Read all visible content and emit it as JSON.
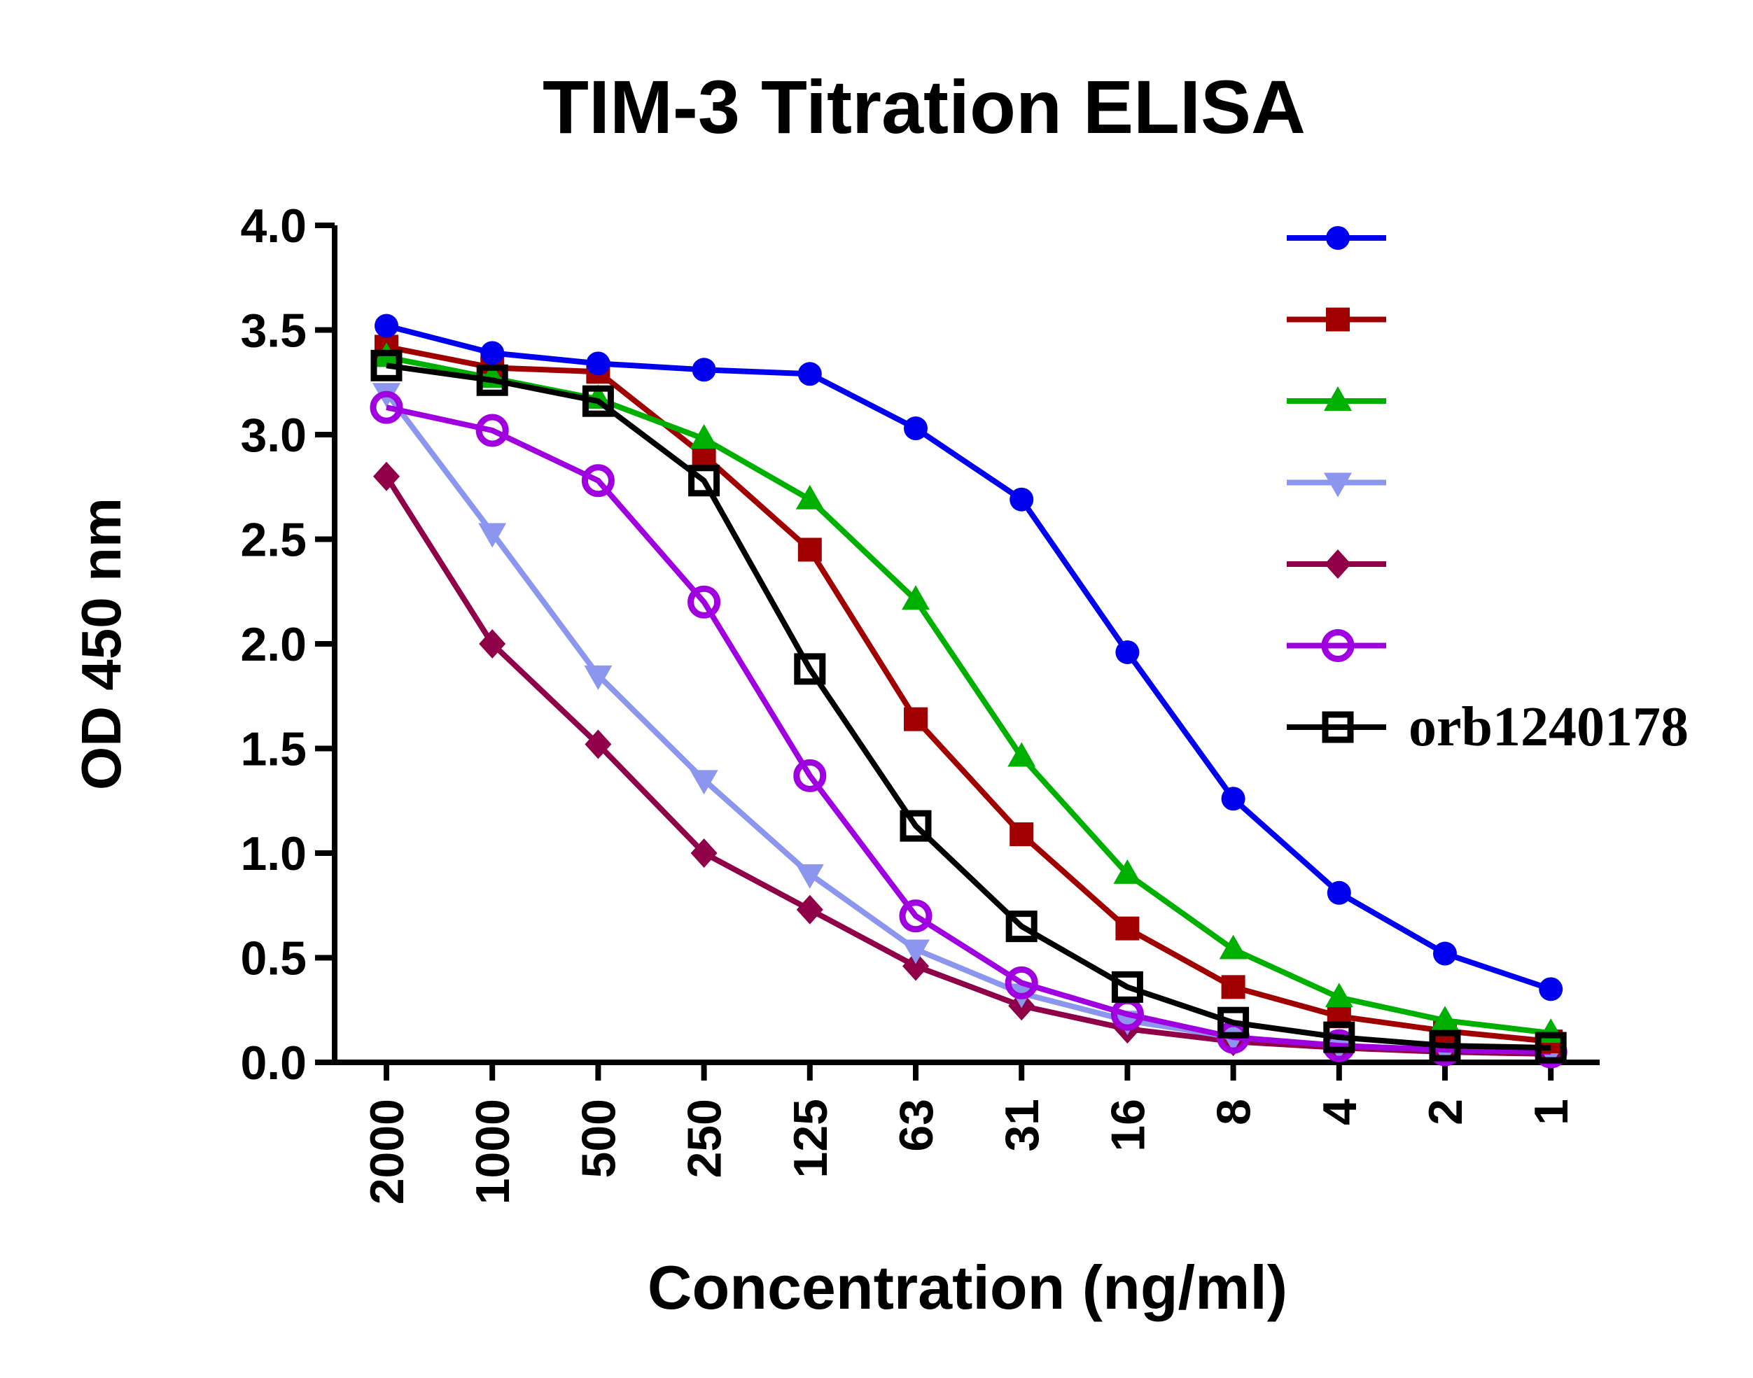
{
  "chart_data": {
    "type": "line",
    "title": "TIM-3 Titration ELISA",
    "xlabel": "Concentration (ng/ml)",
    "ylabel": "OD 450 nm",
    "categories": [
      "2000",
      "1000",
      "500",
      "250",
      "125",
      "63",
      "31",
      "16",
      "8",
      "4",
      "2",
      "1"
    ],
    "ylim": [
      0,
      4
    ],
    "yticks": [
      "0.0",
      "0.5",
      "1.0",
      "1.5",
      "2.0",
      "2.5",
      "3.0",
      "3.5",
      "4.0"
    ],
    "grid": false,
    "legend_position": "right",
    "series": [
      {
        "name": "",
        "color": "#0000ee",
        "marker": "circle",
        "values": [
          3.52,
          3.39,
          3.34,
          3.31,
          3.29,
          3.03,
          2.69,
          1.96,
          1.26,
          0.81,
          0.52,
          0.35
        ]
      },
      {
        "name": "",
        "color": "#a00000",
        "marker": "square",
        "values": [
          3.42,
          3.32,
          3.3,
          2.9,
          2.45,
          1.64,
          1.09,
          0.64,
          0.36,
          0.22,
          0.15,
          0.1
        ]
      },
      {
        "name": "",
        "color": "#00b000",
        "marker": "triangle-up",
        "values": [
          3.37,
          3.27,
          3.17,
          2.98,
          2.69,
          2.21,
          1.46,
          0.9,
          0.54,
          0.31,
          0.2,
          0.14
        ]
      },
      {
        "name": "",
        "color": "#8c96ee",
        "marker": "triangle-down",
        "values": [
          3.2,
          2.53,
          1.85,
          1.35,
          0.9,
          0.54,
          0.33,
          0.2,
          0.12,
          0.08,
          0.06,
          0.05
        ]
      },
      {
        "name": "",
        "color": "#900048",
        "marker": "diamond",
        "values": [
          2.8,
          2.0,
          1.52,
          1.0,
          0.73,
          0.46,
          0.27,
          0.16,
          0.1,
          0.07,
          0.05,
          0.04
        ]
      },
      {
        "name": "",
        "color": "#a000e0",
        "marker": "circle-open",
        "values": [
          3.13,
          3.02,
          2.78,
          2.2,
          1.37,
          0.7,
          0.38,
          0.23,
          0.12,
          0.08,
          0.06,
          0.05
        ]
      },
      {
        "name": "orb1240178",
        "color": "#000000",
        "marker": "square-open",
        "values": [
          3.33,
          3.26,
          3.16,
          2.78,
          1.88,
          1.13,
          0.65,
          0.36,
          0.19,
          0.12,
          0.08,
          0.07
        ]
      }
    ]
  }
}
